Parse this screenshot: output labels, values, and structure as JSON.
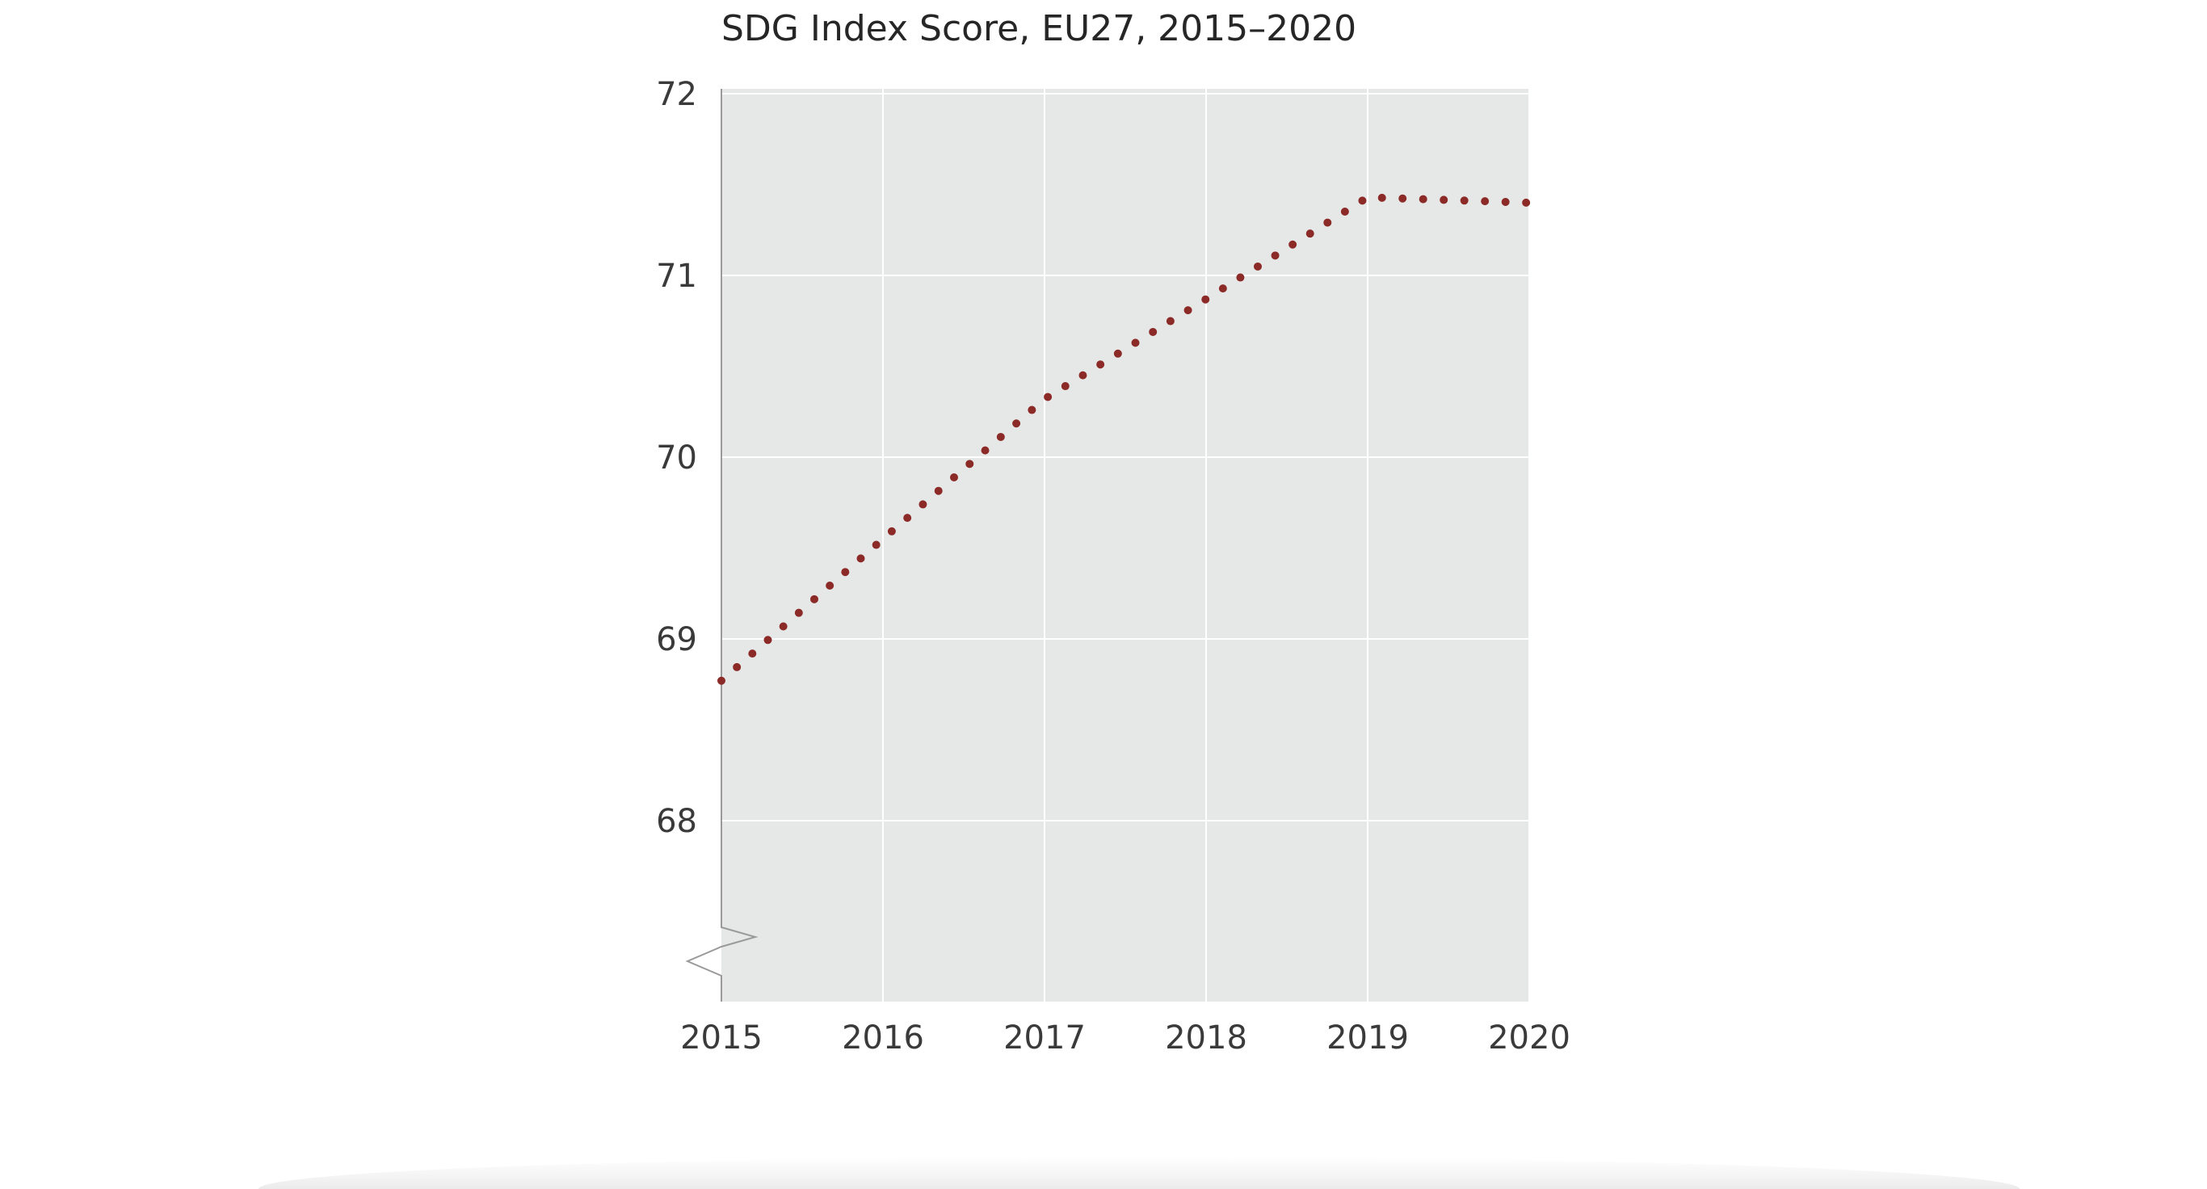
{
  "chart_data": {
    "type": "line",
    "title": "SDG Index Score, EU27, 2015–2020",
    "xlabel": "",
    "ylabel": "",
    "x": [
      2015,
      2016,
      2017,
      2018,
      2019,
      2020
    ],
    "xticks": [
      "2015",
      "2016",
      "2017",
      "2018",
      "2019",
      "2020"
    ],
    "yticks": [
      "68",
      "69",
      "70",
      "71",
      "72"
    ],
    "ylim": [
      67,
      72
    ],
    "xlim": [
      2015,
      2020
    ],
    "y_axis_break": true,
    "grid": true,
    "line_style": "dotted",
    "series": [
      {
        "values": [
          68.77,
          69.55,
          70.32,
          70.87,
          71.43,
          71.4
        ],
        "color": "#8b2a26"
      }
    ],
    "colors": {
      "plot_background": "#e6e7e7",
      "gridline": "#ffffff",
      "axis": "#9a9a9a"
    }
  }
}
